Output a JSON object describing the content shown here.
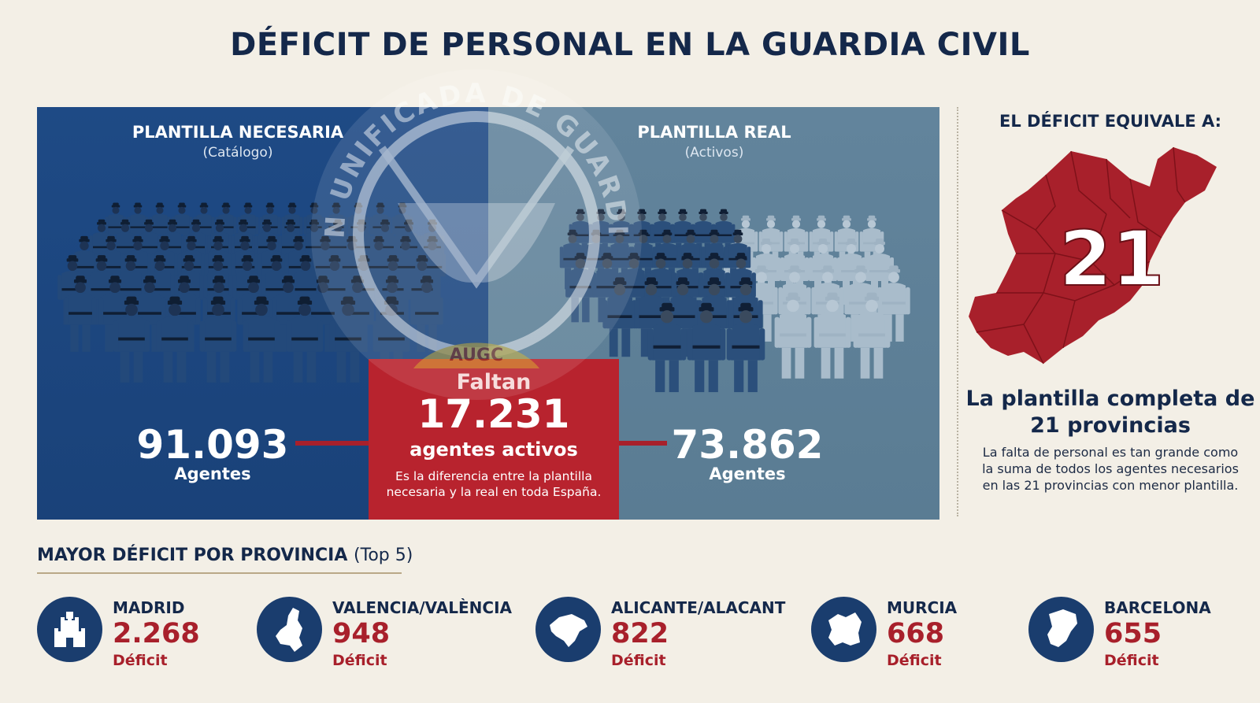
{
  "title": "DÉFICIT DE PERSONAL EN LA GUARDIA CIVIL",
  "necesaria": {
    "heading": "PLANTILLA NECESARIA",
    "sub": "(Catálogo)",
    "value": "91.093",
    "unit": "Agentes"
  },
  "real": {
    "heading": "PLANTILLA REAL",
    "sub": "(Activos)",
    "value": "73.862",
    "unit": "Agentes"
  },
  "gap": {
    "label": "Faltan",
    "value": "17.231",
    "unit": "agentes activos",
    "description": "Es la diferencia entre la plantilla necesaria y la real en toda España."
  },
  "watermark": {
    "text": "ASOCIACIÓN UNIFICADA DE GUARDIAS CIVILES",
    "acronym": "AUGC"
  },
  "equivalence": {
    "title": "EL DÉFICIT EQUIVALE A:",
    "number": "21",
    "headline": "La plantilla completa de 21 provincias",
    "description": "La falta de personal es tan grande como la suma de todos los agentes necesarios en las 21 provincias con menor plantilla."
  },
  "top5": {
    "title": "MAYOR DÉFICIT POR PROVINCIA",
    "title_suffix": "(Top 5)",
    "items": [
      {
        "name": "MADRID",
        "value": "2.268",
        "label": "Déficit",
        "icon": "castle-icon"
      },
      {
        "name": "VALENCIA/VALÈNCIA",
        "value": "948",
        "label": "Déficit",
        "icon": "valencia-map-icon"
      },
      {
        "name": "ALICANTE/ALACANT",
        "value": "822",
        "label": "Déficit",
        "icon": "alicante-map-icon"
      },
      {
        "name": "MURCIA",
        "value": "668",
        "label": "Déficit",
        "icon": "murcia-map-icon"
      },
      {
        "name": "BARCELONA",
        "value": "655",
        "label": "Déficit",
        "icon": "barcelona-map-icon"
      }
    ]
  },
  "colors": {
    "navy": "#14284a",
    "panel_blue": "#1e4a85",
    "panel_grey": "#62849c",
    "accent_red": "#a8202b",
    "background": "#f3efe6"
  }
}
